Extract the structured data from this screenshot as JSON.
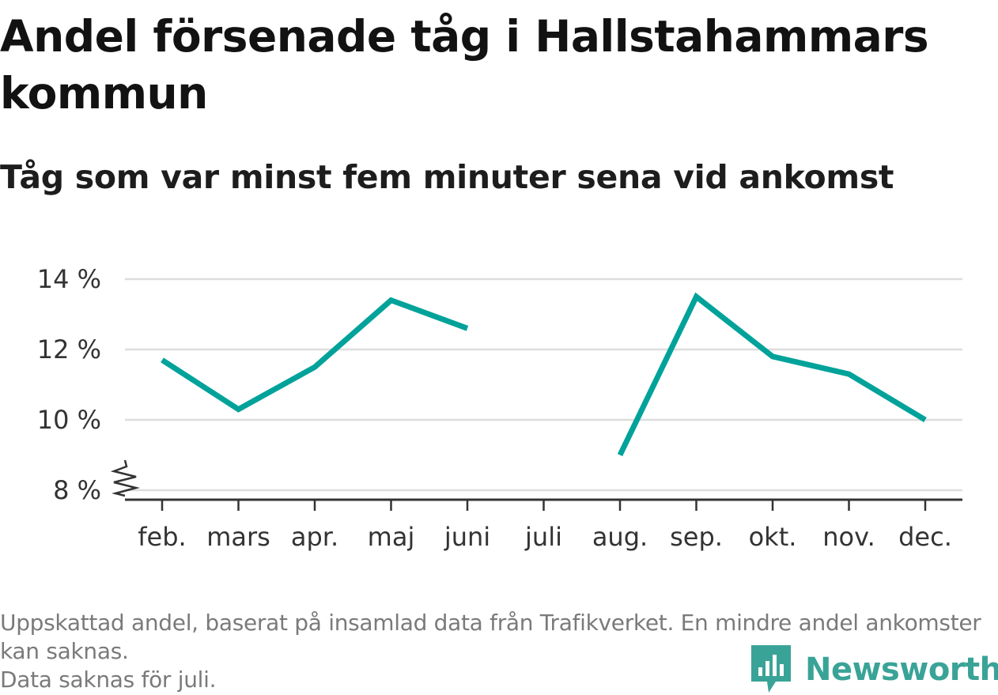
{
  "title": "Andel försenade tåg i Hallstahammars kommun",
  "subtitle": "Tåg som var minst fem minuter sena vid ankomst",
  "colors": {
    "line": "#00a29a",
    "grid": "#dddddd",
    "axis": "#333333",
    "brand": "#3aa397"
  },
  "chart_data": {
    "type": "line",
    "categories": [
      "feb.",
      "mars",
      "apr.",
      "maj",
      "juni",
      "juli",
      "aug.",
      "sep.",
      "okt.",
      "nov.",
      "dec."
    ],
    "series": [
      {
        "values": [
          11.7,
          10.3,
          11.5,
          13.4,
          12.6,
          null,
          9.0,
          13.5,
          11.8,
          11.3,
          10.0
        ]
      }
    ],
    "y_ticks": [
      8,
      10,
      12,
      14
    ],
    "y_tick_labels": [
      "8 %",
      "10 %",
      "12 %",
      "14 %"
    ],
    "ylim": [
      8,
      14.5
    ],
    "y_axis_break": true,
    "grid": true,
    "xlabel": "",
    "ylabel": ""
  },
  "footer": {
    "note": "Uppskattad andel, baserat på insamlad data från Trafikverket. En mindre andel ankomster kan saknas.",
    "missing_note": "Data saknas för juli."
  },
  "brand": {
    "name": "Newsworthy",
    "logo_icon": "newsworthy-logo-icon"
  }
}
